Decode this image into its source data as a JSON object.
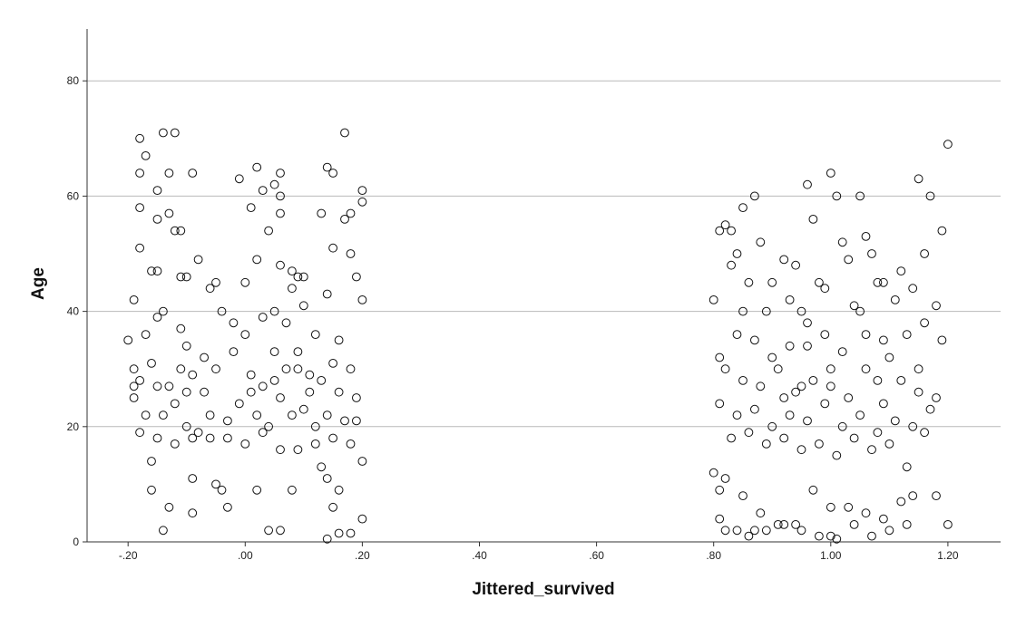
{
  "chart_data": {
    "type": "scatter",
    "xlabel": "Jittered_survived",
    "ylabel": "Age",
    "xlim": [
      -0.27,
      1.29
    ],
    "ylim": [
      0,
      89
    ],
    "x_ticks": [
      -0.2,
      0.0,
      0.2,
      0.4,
      0.6,
      0.8,
      1.0,
      1.2
    ],
    "x_tick_labels": [
      "-.20",
      ".00",
      ".20",
      ".40",
      ".60",
      ".80",
      "1.00",
      "1.20"
    ],
    "y_ticks": [
      0,
      20,
      40,
      60,
      80
    ],
    "y_tick_labels": [
      "0",
      "20",
      "40",
      "60",
      "80"
    ],
    "grid": "horizontal",
    "marker": "hollow-circle",
    "series": [
      {
        "points": [
          [
            -0.18,
            70
          ],
          [
            -0.14,
            71
          ],
          [
            -0.12,
            71
          ],
          [
            0.17,
            71
          ],
          [
            -0.17,
            67
          ],
          [
            0.14,
            65
          ],
          [
            0.02,
            65
          ],
          [
            -0.18,
            64
          ],
          [
            -0.13,
            64
          ],
          [
            -0.09,
            64
          ],
          [
            0.06,
            64
          ],
          [
            0.15,
            64
          ],
          [
            -0.01,
            63
          ],
          [
            0.05,
            62
          ],
          [
            0.2,
            61
          ],
          [
            -0.15,
            61
          ],
          [
            0.03,
            61
          ],
          [
            0.06,
            60
          ],
          [
            0.2,
            59
          ],
          [
            -0.18,
            58
          ],
          [
            0.01,
            58
          ],
          [
            0.18,
            57
          ],
          [
            -0.13,
            57
          ],
          [
            0.06,
            57
          ],
          [
            0.13,
            57
          ],
          [
            -0.15,
            56
          ],
          [
            0.17,
            56
          ],
          [
            -0.12,
            54
          ],
          [
            -0.11,
            54
          ],
          [
            0.04,
            54
          ],
          [
            0.15,
            51
          ],
          [
            0.18,
            50
          ],
          [
            -0.18,
            51
          ],
          [
            -0.16,
            47
          ],
          [
            -0.15,
            47
          ],
          [
            0.06,
            48
          ],
          [
            0.08,
            47
          ],
          [
            0.1,
            46
          ],
          [
            0.09,
            46
          ],
          [
            -0.11,
            46
          ],
          [
            -0.1,
            46
          ],
          [
            0.19,
            46
          ],
          [
            -0.08,
            49
          ],
          [
            0.02,
            49
          ],
          [
            -0.19,
            42
          ],
          [
            -0.15,
            39
          ],
          [
            0.2,
            42
          ],
          [
            -0.06,
            44
          ],
          [
            -0.05,
            45
          ],
          [
            0.14,
            43
          ],
          [
            -0.14,
            40
          ],
          [
            0.05,
            40
          ],
          [
            0.08,
            44
          ],
          [
            -0.17,
            36
          ],
          [
            0.12,
            36
          ],
          [
            -0.11,
            37
          ],
          [
            0.15,
            31
          ],
          [
            -0.2,
            35
          ],
          [
            -0.19,
            30
          ],
          [
            -0.18,
            28
          ],
          [
            -0.15,
            27
          ],
          [
            -0.13,
            27
          ],
          [
            -0.1,
            26
          ],
          [
            -0.09,
            29
          ],
          [
            -0.07,
            32
          ],
          [
            -0.05,
            30
          ],
          [
            -0.02,
            33
          ],
          [
            0.0,
            36
          ],
          [
            0.01,
            29
          ],
          [
            0.03,
            27
          ],
          [
            0.05,
            28
          ],
          [
            0.07,
            30
          ],
          [
            0.09,
            33
          ],
          [
            0.11,
            29
          ],
          [
            0.13,
            28
          ],
          [
            0.16,
            26
          ],
          [
            0.18,
            30
          ],
          [
            0.19,
            25
          ],
          [
            -0.19,
            25
          ],
          [
            -0.17,
            22
          ],
          [
            -0.14,
            22
          ],
          [
            -0.12,
            24
          ],
          [
            -0.1,
            20
          ],
          [
            -0.08,
            19
          ],
          [
            -0.06,
            22
          ],
          [
            -0.03,
            21
          ],
          [
            -0.01,
            24
          ],
          [
            0.02,
            22
          ],
          [
            0.04,
            20
          ],
          [
            0.06,
            25
          ],
          [
            0.08,
            22
          ],
          [
            0.1,
            23
          ],
          [
            0.12,
            20
          ],
          [
            0.14,
            22
          ],
          [
            0.17,
            21
          ],
          [
            0.19,
            21
          ],
          [
            -0.18,
            19
          ],
          [
            -0.15,
            18
          ],
          [
            -0.12,
            17
          ],
          [
            -0.09,
            18
          ],
          [
            -0.06,
            18
          ],
          [
            -0.03,
            18
          ],
          [
            0.0,
            17
          ],
          [
            0.03,
            19
          ],
          [
            0.06,
            16
          ],
          [
            0.09,
            16
          ],
          [
            0.12,
            17
          ],
          [
            0.15,
            18
          ],
          [
            0.18,
            17
          ],
          [
            -0.16,
            14
          ],
          [
            0.13,
            13
          ],
          [
            -0.09,
            11
          ],
          [
            0.14,
            11
          ],
          [
            -0.05,
            10
          ],
          [
            -0.04,
            9
          ],
          [
            0.02,
            9
          ],
          [
            0.08,
            9
          ],
          [
            0.16,
            9
          ],
          [
            0.2,
            14
          ],
          [
            -0.16,
            9
          ],
          [
            -0.13,
            6
          ],
          [
            -0.03,
            6
          ],
          [
            0.15,
            6
          ],
          [
            -0.09,
            5
          ],
          [
            0.2,
            4
          ],
          [
            -0.14,
            2
          ],
          [
            0.04,
            2
          ],
          [
            0.06,
            2
          ],
          [
            0.16,
            1.5
          ],
          [
            0.18,
            1.5
          ],
          [
            0.14,
            0.5
          ],
          [
            -0.1,
            34
          ],
          [
            -0.04,
            40
          ],
          [
            0.0,
            45
          ],
          [
            0.03,
            39
          ],
          [
            0.07,
            38
          ],
          [
            0.1,
            41
          ],
          [
            -0.16,
            31
          ],
          [
            -0.07,
            26
          ],
          [
            0.01,
            26
          ],
          [
            0.11,
            26
          ],
          [
            -0.02,
            38
          ],
          [
            0.09,
            30
          ],
          [
            -0.19,
            27
          ],
          [
            -0.11,
            30
          ],
          [
            0.05,
            33
          ],
          [
            0.16,
            35
          ]
        ]
      },
      {
        "points": [
          [
            1.2,
            69
          ],
          [
            1.0,
            64
          ],
          [
            1.15,
            63
          ],
          [
            1.17,
            60
          ],
          [
            0.96,
            62
          ],
          [
            1.01,
            60
          ],
          [
            1.05,
            60
          ],
          [
            0.87,
            60
          ],
          [
            0.82,
            55
          ],
          [
            0.83,
            54
          ],
          [
            0.85,
            58
          ],
          [
            0.97,
            56
          ],
          [
            1.02,
            52
          ],
          [
            1.06,
            53
          ],
          [
            1.19,
            54
          ],
          [
            0.81,
            54
          ],
          [
            0.84,
            50
          ],
          [
            0.88,
            52
          ],
          [
            0.92,
            49
          ],
          [
            0.94,
            48
          ],
          [
            0.98,
            45
          ],
          [
            1.03,
            49
          ],
          [
            1.07,
            50
          ],
          [
            1.09,
            45
          ],
          [
            1.12,
            47
          ],
          [
            1.16,
            50
          ],
          [
            0.8,
            42
          ],
          [
            0.83,
            48
          ],
          [
            0.86,
            45
          ],
          [
            0.89,
            40
          ],
          [
            0.93,
            42
          ],
          [
            0.95,
            40
          ],
          [
            0.99,
            44
          ],
          [
            1.04,
            41
          ],
          [
            1.08,
            45
          ],
          [
            1.11,
            42
          ],
          [
            1.14,
            44
          ],
          [
            1.18,
            41
          ],
          [
            0.81,
            32
          ],
          [
            0.84,
            36
          ],
          [
            0.87,
            35
          ],
          [
            0.9,
            32
          ],
          [
            0.93,
            34
          ],
          [
            0.96,
            38
          ],
          [
            0.99,
            36
          ],
          [
            1.02,
            33
          ],
          [
            1.06,
            36
          ],
          [
            1.09,
            35
          ],
          [
            1.13,
            36
          ],
          [
            1.16,
            38
          ],
          [
            1.19,
            35
          ],
          [
            0.82,
            30
          ],
          [
            0.85,
            28
          ],
          [
            0.88,
            27
          ],
          [
            0.91,
            30
          ],
          [
            0.94,
            26
          ],
          [
            0.97,
            28
          ],
          [
            1.0,
            27
          ],
          [
            1.03,
            25
          ],
          [
            1.06,
            30
          ],
          [
            1.09,
            24
          ],
          [
            1.12,
            28
          ],
          [
            1.15,
            26
          ],
          [
            1.18,
            25
          ],
          [
            0.81,
            24
          ],
          [
            0.84,
            22
          ],
          [
            0.87,
            23
          ],
          [
            0.9,
            20
          ],
          [
            0.93,
            22
          ],
          [
            0.96,
            21
          ],
          [
            0.99,
            24
          ],
          [
            1.02,
            20
          ],
          [
            1.05,
            22
          ],
          [
            1.08,
            19
          ],
          [
            1.11,
            21
          ],
          [
            1.14,
            20
          ],
          [
            1.17,
            23
          ],
          [
            0.83,
            18
          ],
          [
            0.86,
            19
          ],
          [
            0.89,
            17
          ],
          [
            0.92,
            18
          ],
          [
            0.95,
            16
          ],
          [
            0.98,
            17
          ],
          [
            1.01,
            15
          ],
          [
            1.04,
            18
          ],
          [
            1.07,
            16
          ],
          [
            1.1,
            17
          ],
          [
            1.13,
            13
          ],
          [
            1.16,
            19
          ],
          [
            0.8,
            12
          ],
          [
            0.81,
            9
          ],
          [
            0.82,
            11
          ],
          [
            0.85,
            8
          ],
          [
            0.88,
            5
          ],
          [
            0.91,
            3
          ],
          [
            0.94,
            3
          ],
          [
            0.97,
            9
          ],
          [
            1.0,
            6
          ],
          [
            1.03,
            6
          ],
          [
            1.06,
            5
          ],
          [
            1.09,
            4
          ],
          [
            1.12,
            7
          ],
          [
            1.14,
            8
          ],
          [
            1.18,
            8
          ],
          [
            1.2,
            3
          ],
          [
            0.81,
            4
          ],
          [
            0.84,
            2
          ],
          [
            0.86,
            1
          ],
          [
            0.87,
            2
          ],
          [
            0.89,
            2
          ],
          [
            0.92,
            3
          ],
          [
            0.95,
            2
          ],
          [
            0.98,
            1
          ],
          [
            1.0,
            1
          ],
          [
            1.01,
            0.5
          ],
          [
            1.04,
            3
          ],
          [
            1.07,
            1
          ],
          [
            1.1,
            2
          ],
          [
            0.82,
            2
          ],
          [
            1.13,
            3
          ],
          [
            0.95,
            27
          ],
          [
            1.0,
            30
          ],
          [
            0.9,
            45
          ],
          [
            1.05,
            40
          ],
          [
            1.1,
            32
          ],
          [
            0.85,
            40
          ],
          [
            1.15,
            30
          ],
          [
            0.92,
            25
          ],
          [
            1.08,
            28
          ],
          [
            0.96,
            34
          ]
        ]
      }
    ]
  }
}
